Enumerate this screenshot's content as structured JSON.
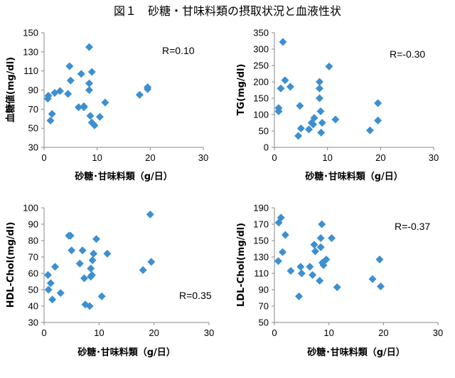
{
  "figure_title": "図１　砂糖・甘味料類の摂取状況と血液性状",
  "chart_data": [
    {
      "type": "scatter",
      "xlabel": "砂糖･甘味料類（g/日）",
      "ylabel": "血糖値(mg/dl)",
      "annotation": "R=0.10",
      "xlim": [
        0,
        30
      ],
      "xticks": [
        0,
        10,
        20,
        30
      ],
      "ylim": [
        30,
        150
      ],
      "yticks": [
        30,
        50,
        70,
        90,
        110,
        130,
        150
      ],
      "points": [
        [
          0.7,
          81
        ],
        [
          0.8,
          84
        ],
        [
          1.2,
          58
        ],
        [
          1.5,
          65
        ],
        [
          2,
          87
        ],
        [
          3,
          89
        ],
        [
          4.5,
          86
        ],
        [
          4.8,
          115
        ],
        [
          5,
          100
        ],
        [
          6.5,
          72
        ],
        [
          7,
          107
        ],
        [
          7.5,
          72
        ],
        [
          7.5,
          73
        ],
        [
          8.5,
          135
        ],
        [
          8.5,
          97
        ],
        [
          8.5,
          90
        ],
        [
          8.7,
          63
        ],
        [
          9,
          56
        ],
        [
          9,
          109
        ],
        [
          9.5,
          53
        ],
        [
          10.5,
          62
        ],
        [
          11.5,
          77
        ],
        [
          18,
          85
        ],
        [
          19.5,
          93
        ],
        [
          19.5,
          91
        ]
      ]
    },
    {
      "type": "scatter",
      "xlabel": "砂糖･甘味料類（g/日）",
      "ylabel": "TG(mg/dl)",
      "annotation": "R=-0.30",
      "xlim": [
        0,
        30
      ],
      "xticks": [
        0,
        10,
        20,
        30
      ],
      "ylim": [
        0,
        350
      ],
      "yticks": [
        0,
        50,
        100,
        150,
        200,
        250,
        300,
        350
      ],
      "points": [
        [
          0.8,
          120
        ],
        [
          0.8,
          110
        ],
        [
          1.2,
          180
        ],
        [
          1.6,
          322
        ],
        [
          2,
          205
        ],
        [
          3,
          185
        ],
        [
          4.5,
          35
        ],
        [
          4.8,
          127
        ],
        [
          5,
          58
        ],
        [
          6.5,
          55
        ],
        [
          7,
          75
        ],
        [
          7.3,
          70
        ],
        [
          7.5,
          90
        ],
        [
          8.5,
          200
        ],
        [
          8.5,
          180
        ],
        [
          8.5,
          150
        ],
        [
          8.7,
          110
        ],
        [
          8.8,
          45
        ],
        [
          9,
          75
        ],
        [
          10.3,
          247
        ],
        [
          11.5,
          85
        ],
        [
          18,
          52
        ],
        [
          19.5,
          135
        ],
        [
          19.5,
          82
        ]
      ]
    },
    {
      "type": "scatter",
      "xlabel": "砂糖･甘味料類（g/日）",
      "ylabel": "HDL-Chol(mg/dl)",
      "annotation": "R=0.35",
      "xlim": [
        0,
        30
      ],
      "xticks": [
        0,
        10,
        20,
        30
      ],
      "ylim": [
        30,
        100
      ],
      "yticks": [
        30,
        40,
        50,
        60,
        70,
        80,
        90,
        100
      ],
      "points": [
        [
          0.7,
          59
        ],
        [
          0.8,
          50
        ],
        [
          1.2,
          54
        ],
        [
          1.5,
          44
        ],
        [
          2,
          64
        ],
        [
          3,
          48
        ],
        [
          4.5,
          83
        ],
        [
          4.8,
          83
        ],
        [
          5,
          74
        ],
        [
          6.5,
          66
        ],
        [
          7,
          74
        ],
        [
          7.3,
          57
        ],
        [
          7.5,
          41
        ],
        [
          8.3,
          40
        ],
        [
          8.5,
          63
        ],
        [
          8.5,
          58
        ],
        [
          8.7,
          59
        ],
        [
          8.8,
          68
        ],
        [
          9,
          72
        ],
        [
          9.5,
          81
        ],
        [
          10.5,
          46
        ],
        [
          11.5,
          72
        ],
        [
          18,
          62
        ],
        [
          19.3,
          96
        ],
        [
          19.5,
          67
        ]
      ]
    },
    {
      "type": "scatter",
      "xlabel": "砂糖･甘味料類（g/日）",
      "ylabel": "LDL-Chol(mg/dl)",
      "annotation": "R=-0.37",
      "xlim": [
        0,
        30
      ],
      "xticks": [
        0,
        10,
        20,
        30
      ],
      "ylim": [
        50,
        190
      ],
      "yticks": [
        50,
        70,
        90,
        110,
        130,
        150,
        170,
        190
      ],
      "points": [
        [
          0.7,
          125
        ],
        [
          0.8,
          172
        ],
        [
          1.2,
          178
        ],
        [
          1.5,
          136
        ],
        [
          2,
          157
        ],
        [
          3,
          113
        ],
        [
          4.5,
          82
        ],
        [
          4.8,
          118
        ],
        [
          5,
          110
        ],
        [
          6.5,
          118
        ],
        [
          7,
          108
        ],
        [
          7.3,
          145
        ],
        [
          7.5,
          137
        ],
        [
          8.3,
          101
        ],
        [
          8.5,
          153
        ],
        [
          8.5,
          142
        ],
        [
          8.7,
          170
        ],
        [
          8.8,
          123
        ],
        [
          9,
          120
        ],
        [
          9.5,
          127
        ],
        [
          10.5,
          153
        ],
        [
          11.5,
          93
        ],
        [
          18,
          103
        ],
        [
          19.3,
          127
        ],
        [
          19.5,
          94
        ]
      ]
    }
  ]
}
